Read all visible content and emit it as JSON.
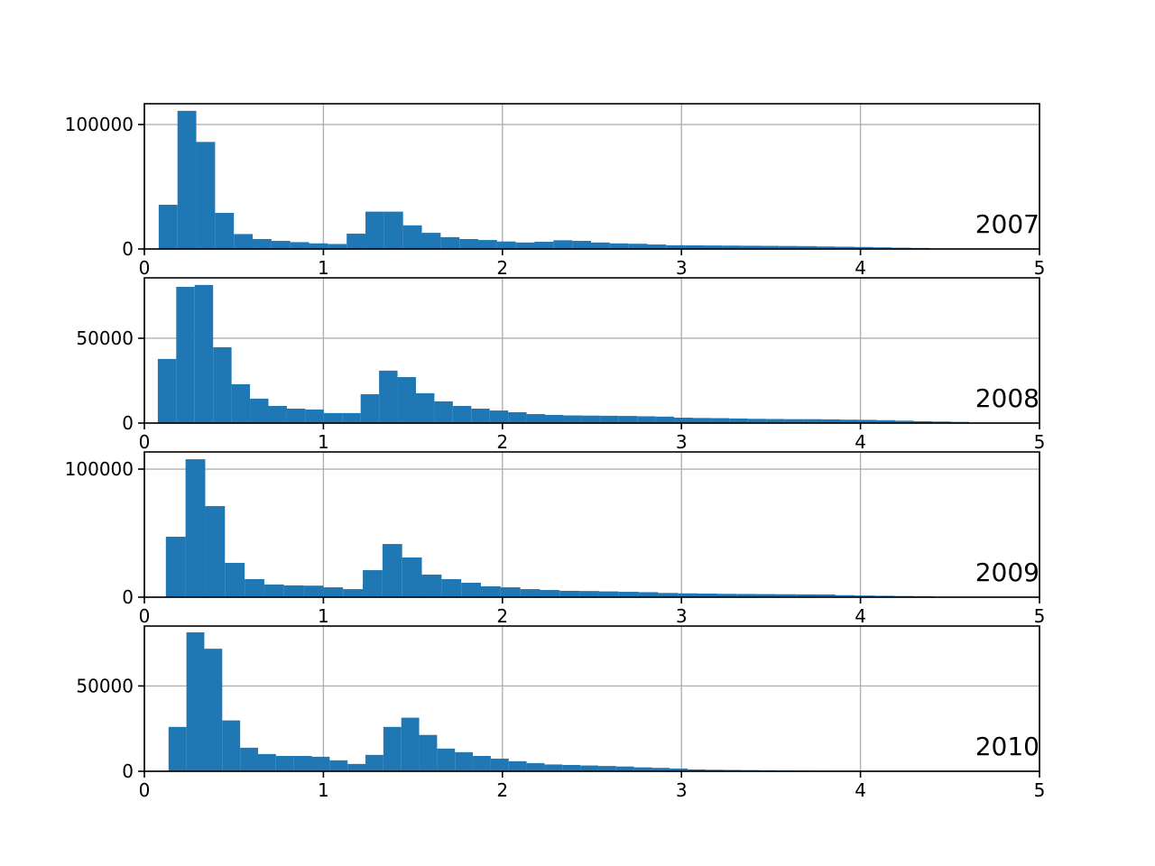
{
  "chart_data": [
    {
      "type": "histogram",
      "annotation": "2007",
      "color": "#1f77b4",
      "grid": true,
      "xlim": [
        0,
        5
      ],
      "xticks": [
        0,
        1,
        2,
        3,
        4,
        5
      ],
      "ylim": [
        0,
        116700
      ],
      "yticks": [
        0,
        100000
      ],
      "bins": [
        0.08,
        0.185,
        0.29,
        0.395,
        0.5,
        0.605,
        0.71,
        0.815,
        0.92,
        1.025,
        1.13,
        1.235,
        1.34,
        1.445,
        1.55,
        1.655,
        1.76,
        1.865,
        1.97,
        2.075,
        2.18,
        2.285,
        2.39,
        2.495,
        2.6,
        2.705,
        2.81,
        2.915,
        3.02,
        3.125,
        3.23,
        3.335,
        3.44,
        3.545,
        3.65,
        3.755,
        3.86,
        3.965,
        4.07,
        4.175,
        4.28,
        4.385
      ],
      "values": [
        35500,
        111000,
        86000,
        29000,
        12000,
        8000,
        6500,
        5500,
        4500,
        4000,
        12300,
        30000,
        30000,
        19000,
        13000,
        9500,
        8000,
        7200,
        6000,
        5200,
        5800,
        7000,
        6500,
        5200,
        4500,
        4200,
        3600,
        3000,
        2900,
        2800,
        2700,
        2600,
        2500,
        2400,
        2300,
        2000,
        1800,
        1600,
        1300,
        1000,
        800
      ]
    },
    {
      "type": "histogram",
      "annotation": "2008",
      "color": "#1f77b4",
      "grid": true,
      "xlim": [
        0,
        5
      ],
      "xticks": [
        0,
        1,
        2,
        3,
        4,
        5
      ],
      "ylim": [
        0,
        85600
      ],
      "yticks": [
        0,
        50000
      ],
      "bins": [
        0.075,
        0.178,
        0.281,
        0.384,
        0.487,
        0.59,
        0.693,
        0.796,
        0.899,
        1.002,
        1.105,
        1.208,
        1.311,
        1.414,
        1.517,
        1.62,
        1.723,
        1.826,
        1.929,
        2.032,
        2.135,
        2.238,
        2.341,
        2.444,
        2.547,
        2.65,
        2.753,
        2.856,
        2.959,
        3.062,
        3.165,
        3.268,
        3.371,
        3.474,
        3.577,
        3.68,
        3.783,
        3.886,
        3.989,
        4.092,
        4.195,
        4.298,
        4.401,
        4.504,
        4.607
      ],
      "values": [
        37800,
        80300,
        81400,
        44700,
        22900,
        14400,
        10100,
        8500,
        8000,
        5900,
        5900,
        17000,
        30900,
        27100,
        17600,
        12800,
        10100,
        8500,
        7400,
        6400,
        5300,
        4800,
        4500,
        4400,
        4300,
        4200,
        4000,
        3800,
        3200,
        3000,
        2900,
        2700,
        2500,
        2400,
        2300,
        2300,
        2200,
        2000,
        1900,
        1700,
        1400,
        1100,
        900,
        700
      ]
    },
    {
      "type": "histogram",
      "annotation": "2009",
      "color": "#1f77b4",
      "grid": true,
      "xlim": [
        0,
        5
      ],
      "xticks": [
        0,
        1,
        2,
        3,
        4,
        5
      ],
      "ylim": [
        0,
        113400
      ],
      "yticks": [
        0,
        100000
      ],
      "bins": [
        0.12,
        0.23,
        0.34,
        0.45,
        0.56,
        0.67,
        0.78,
        0.89,
        1.0,
        1.11,
        1.22,
        1.33,
        1.44,
        1.55,
        1.66,
        1.77,
        1.88,
        1.99,
        2.1,
        2.21,
        2.32,
        2.43,
        2.54,
        2.65,
        2.76,
        2.87,
        2.98,
        3.09,
        3.2,
        3.31,
        3.42,
        3.53,
        3.64,
        3.75,
        3.86,
        3.97,
        4.08,
        4.19,
        4.3,
        4.41
      ],
      "values": [
        47200,
        107700,
        71100,
        26800,
        14100,
        9900,
        9200,
        9000,
        7700,
        6300,
        21100,
        41500,
        31000,
        17600,
        14100,
        11300,
        8500,
        7700,
        6300,
        5600,
        5000,
        4800,
        4500,
        4200,
        3900,
        3300,
        3000,
        2800,
        2600,
        2500,
        2400,
        2300,
        2200,
        2100,
        1600,
        1300,
        1100,
        900,
        700
      ]
    },
    {
      "type": "histogram",
      "annotation": "2010",
      "color": "#1f77b4",
      "grid": true,
      "xlim": [
        0,
        5
      ],
      "xticks": [
        0,
        1,
        2,
        3,
        4,
        5
      ],
      "ylim": [
        0,
        85100
      ],
      "yticks": [
        0,
        50000
      ],
      "bins": [
        0.135,
        0.235,
        0.335,
        0.435,
        0.535,
        0.635,
        0.735,
        0.835,
        0.935,
        1.035,
        1.135,
        1.235,
        1.335,
        1.435,
        1.535,
        1.635,
        1.735,
        1.835,
        1.935,
        2.035,
        2.135,
        2.235,
        2.335,
        2.435,
        2.535,
        2.635,
        2.735,
        2.835,
        2.935,
        3.035,
        3.135,
        3.235,
        3.335,
        3.435,
        3.535,
        3.635,
        3.735,
        3.835,
        3.935
      ],
      "values": [
        26000,
        81400,
        71800,
        29800,
        13800,
        10100,
        9000,
        9000,
        8500,
        6400,
        4300,
        9600,
        26000,
        31400,
        21300,
        13300,
        11200,
        9000,
        7400,
        5900,
        4800,
        4000,
        3700,
        3400,
        3100,
        2800,
        2300,
        2000,
        1600,
        1100,
        900,
        800,
        700,
        600,
        500,
        400,
        300,
        200
      ]
    }
  ]
}
